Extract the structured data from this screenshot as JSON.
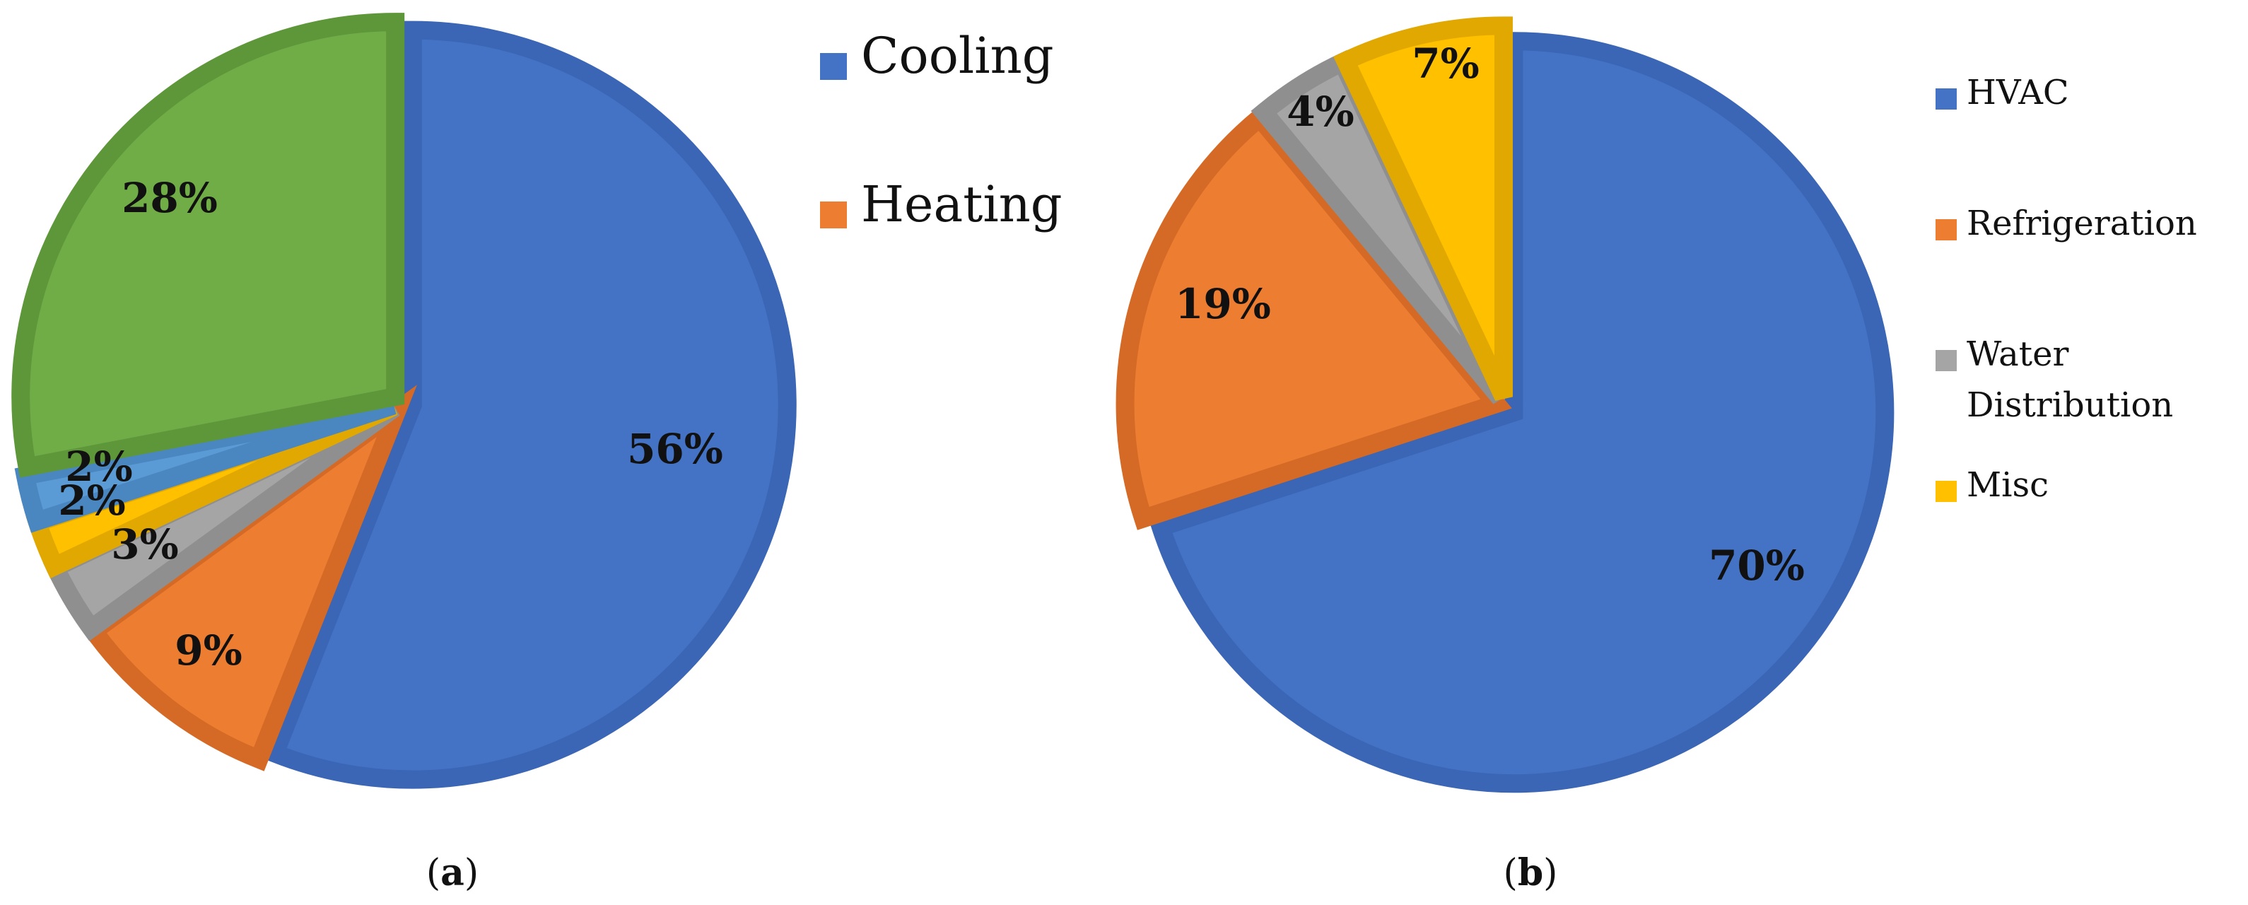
{
  "chart_data": [
    {
      "type": "pie",
      "caption_letter": "a",
      "slices": [
        {
          "label": "Cooling",
          "value": 56,
          "data_label": "56%",
          "color": "#4472C4",
          "border": "#3B65B5"
        },
        {
          "label": "Heating",
          "value": 9,
          "data_label": "9%",
          "color": "#ED7D31",
          "border": "#D46A25"
        },
        {
          "label": "",
          "value": 3,
          "data_label": "3%",
          "color": "#A5A5A5",
          "border": "#8F8F8F"
        },
        {
          "label": "",
          "value": 2,
          "data_label": "2%",
          "color": "#FFC000",
          "border": "#E0A800"
        },
        {
          "label": "",
          "value": 2,
          "data_label": "2%",
          "color": "#5B9BD5",
          "border": "#4A86C0"
        },
        {
          "label": "",
          "value": 28,
          "data_label": "28%",
          "color": "#70AD47",
          "border": "#5E963A"
        }
      ],
      "legend": [
        "Cooling",
        "Heating"
      ],
      "legend_placement": "right"
    },
    {
      "type": "pie",
      "caption_letter": "b",
      "slices": [
        {
          "label": "HVAC",
          "value": 70,
          "data_label": "70%",
          "color": "#4472C4",
          "border": "#3B65B5"
        },
        {
          "label": "Refrigeration",
          "value": 19,
          "data_label": "19%",
          "color": "#ED7D31",
          "border": "#D46A25"
        },
        {
          "label": "Water Distribution",
          "value": 4,
          "data_label": "4%",
          "color": "#A5A5A5",
          "border": "#8F8F8F"
        },
        {
          "label": "Misc",
          "value": 7,
          "data_label": "7%",
          "color": "#FFC000",
          "border": "#E0A800"
        }
      ],
      "legend": [
        "HVAC",
        "Refrigeration",
        "Water Distribution",
        "Misc"
      ],
      "legend_placement": "right"
    }
  ]
}
